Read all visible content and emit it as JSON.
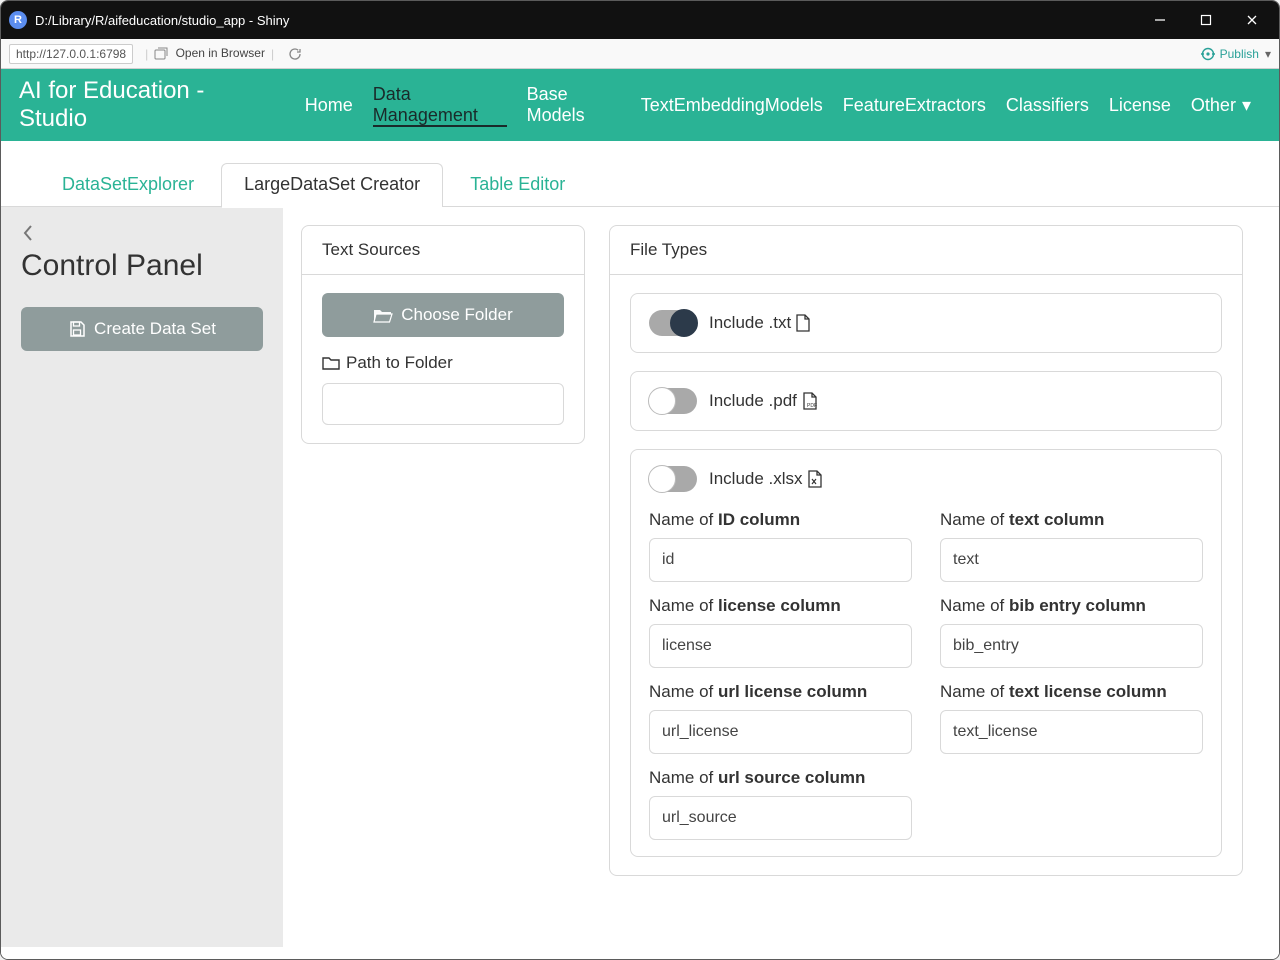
{
  "window": {
    "app_badge_letter": "R",
    "title": "D:/Library/R/aifeducation/studio_app - Shiny"
  },
  "toolbar": {
    "address": "http://127.0.0.1:6798",
    "open_in_browser": "Open in Browser",
    "publish": "Publish"
  },
  "nav": {
    "brand": "AI for Education - Studio",
    "items": [
      "Home",
      "Data Management",
      "Base Models",
      "TextEmbeddingModels",
      "FeatureExtractors",
      "Classifiers",
      "License",
      "Other"
    ],
    "active_index": 1,
    "other_has_caret": true
  },
  "tabs": {
    "items": [
      "DataSetExplorer",
      "LargeDataSet Creator",
      "Table Editor"
    ],
    "active_index": 1
  },
  "sidebar": {
    "title": "Control Panel",
    "create_button": "Create Data Set"
  },
  "text_sources": {
    "header": "Text Sources",
    "choose_folder": "Choose Folder",
    "path_label": "Path to Folder",
    "path_value": ""
  },
  "file_types": {
    "header": "File Types",
    "txt": {
      "label": "Include .txt",
      "on": true
    },
    "pdf": {
      "label": "Include .pdf",
      "on": false
    },
    "xlsx": {
      "label": "Include .xlsx",
      "on": false,
      "fields": {
        "id": {
          "prefix": "Name of ",
          "bold": "ID column",
          "value": "id"
        },
        "text": {
          "prefix": "Name of ",
          "bold": "text column",
          "value": "text"
        },
        "license": {
          "prefix": "Name of ",
          "bold": "license column",
          "value": "license"
        },
        "bib_entry": {
          "prefix": "Name of ",
          "bold": "bib entry column",
          "value": "bib_entry"
        },
        "url_license": {
          "prefix": "Name of ",
          "bold": "url license column",
          "value": "url_license"
        },
        "text_license": {
          "prefix": "Name of ",
          "bold": "text license column",
          "value": "text_license"
        },
        "url_source": {
          "prefix": "Name of ",
          "bold": "url source column",
          "value": "url_source"
        }
      }
    }
  },
  "colors": {
    "teal": "#2ab395",
    "grey_btn": "#8f9c9c",
    "border": "#d9d9d9",
    "sidebar_bg": "#eaeaea",
    "titlebar_bg": "#111111"
  }
}
